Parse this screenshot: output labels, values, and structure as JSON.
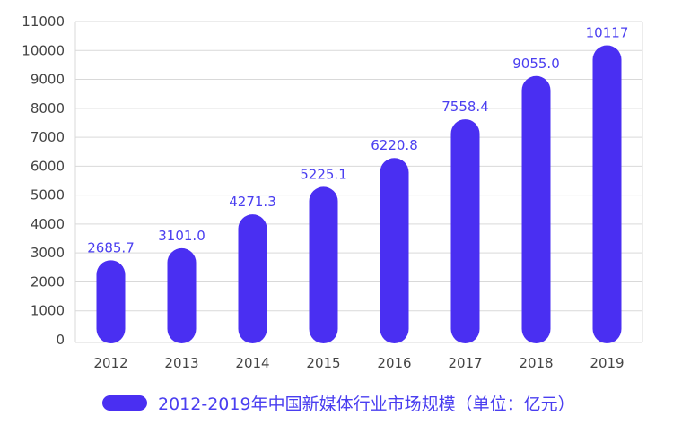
{
  "colors": {
    "bar": "#4a2ff2",
    "grid": "#d9d9d9",
    "axis_text": "#444444",
    "label_text": "#4a3ef0"
  },
  "chart_data": {
    "type": "bar",
    "title": "",
    "xlabel": "",
    "ylabel": "",
    "categories": [
      "2012",
      "2013",
      "2014",
      "2015",
      "2016",
      "2017",
      "2018",
      "2019"
    ],
    "series": [
      {
        "name": "2012-2019年中国新媒体行业市场规模（单位：亿元）",
        "values": [
          2685.7,
          3101.0,
          4271.3,
          5225.1,
          6220.8,
          7558.4,
          9055.0,
          10117
        ],
        "labels": [
          "2685.7",
          "3101.0",
          "4271.3",
          "5225.1",
          "6220.8",
          "7558.4",
          "9055.0",
          "10117"
        ]
      }
    ],
    "ylim": [
      0,
      11000
    ],
    "yticks": [
      0,
      1000,
      2000,
      3000,
      4000,
      5000,
      6000,
      7000,
      8000,
      9000,
      10000,
      11000
    ],
    "grid": true,
    "legend": "bottom"
  }
}
